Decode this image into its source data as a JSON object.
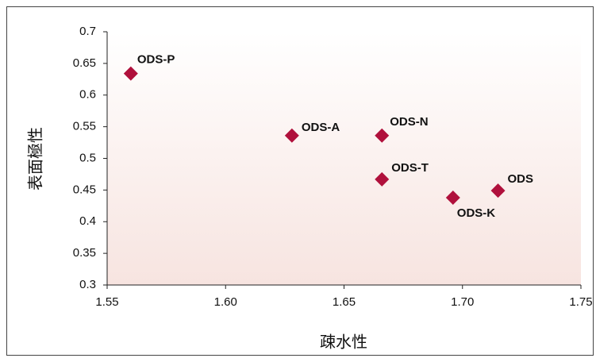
{
  "chart_data": {
    "type": "scatter",
    "x_label": "疎水性",
    "y_label": "表面極性",
    "point_labels": [
      "ODS-P",
      "ODS-A",
      "ODS-N",
      "ODS-T",
      "ODS-K",
      "ODS"
    ],
    "x": [
      1.56,
      1.628,
      1.666,
      1.666,
      1.696,
      1.715
    ],
    "values": [
      0.634,
      0.536,
      0.536,
      0.467,
      0.438,
      0.449
    ],
    "color": "#b0103c",
    "xlim": [
      1.55,
      1.75
    ],
    "xticks": [
      1.55,
      {
        "value": 1.6,
        "label": "1.60"
      },
      1.65,
      {
        "value": 1.7,
        "label": "1.70"
      },
      1.75
    ],
    "ylim": [
      0.3,
      0.7
    ],
    "yticks": [
      0.3,
      0.35,
      0.4,
      0.45,
      0.5,
      0.55,
      0.6,
      0.65,
      0.7
    ],
    "grid": false
  }
}
